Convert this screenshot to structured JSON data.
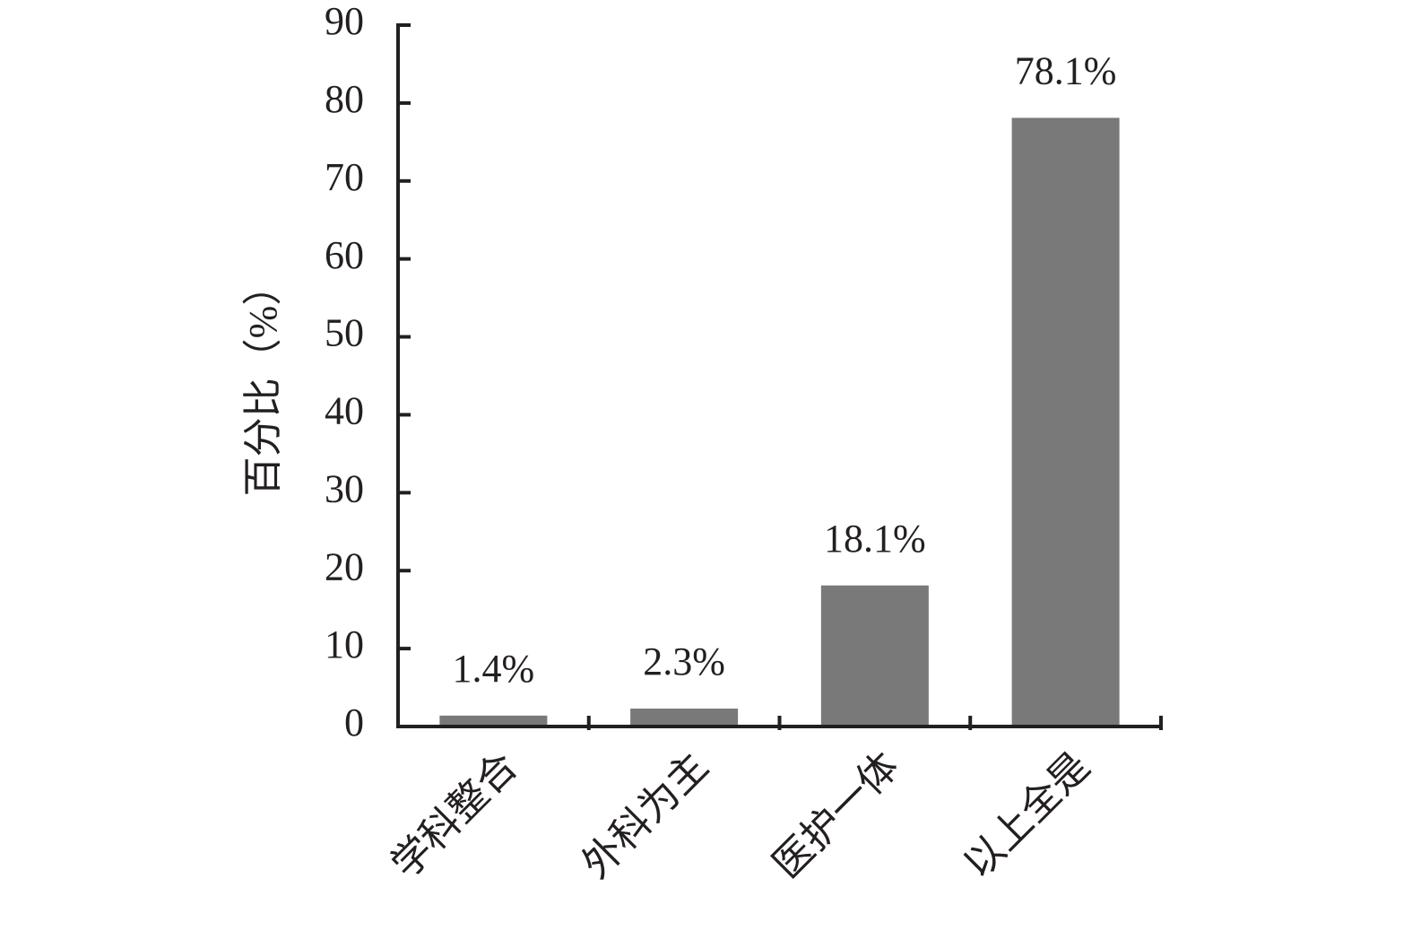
{
  "chart_data": {
    "type": "bar",
    "y_label": "百分比（%）",
    "categories": [
      "学科整合",
      "外科为主",
      "医护一体",
      "以上全是"
    ],
    "values": [
      1.4,
      2.3,
      18.1,
      78.1
    ],
    "value_labels": [
      "1.4%",
      "2.3%",
      "18.1%",
      "78.1%"
    ],
    "color": "#7a797a",
    "ylim": [
      0,
      90
    ],
    "yticks": [
      0,
      10,
      20,
      30,
      40,
      50,
      60,
      70,
      80,
      90
    ],
    "grid": false
  }
}
